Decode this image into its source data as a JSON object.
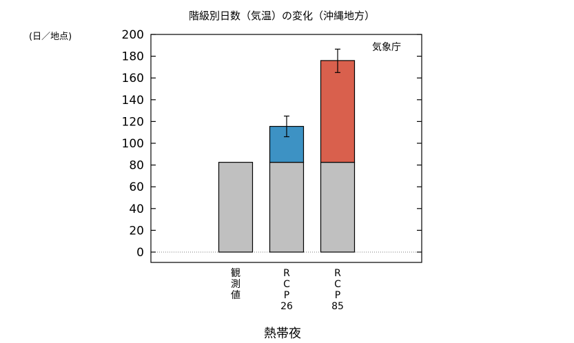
{
  "chart_data": {
    "type": "bar",
    "stacked": true,
    "title": "階級別日数（気温）の変化（沖縄地方）",
    "ylabel": "(日／地点)",
    "xlabel": "熱帯夜",
    "credit": "気象庁",
    "ylim": [
      0,
      200
    ],
    "yticks": [
      0,
      20,
      40,
      60,
      80,
      100,
      120,
      140,
      160,
      180,
      200
    ],
    "categories": [
      [
        "観",
        "測",
        "値"
      ],
      [
        "R",
        "C",
        "P",
        "26"
      ],
      [
        "R",
        "C",
        "P",
        "85"
      ]
    ],
    "series": [
      {
        "values": [
          82.5,
          82.5,
          82.5
        ],
        "color": "#c0c0c0"
      },
      {
        "values": [
          0,
          33,
          93.5
        ],
        "colors": [
          "#c0c0c0",
          "#3d92c4",
          "#d9604d"
        ]
      }
    ],
    "totals": [
      82.5,
      115.5,
      176
    ],
    "error_bars": [
      null,
      {
        "low": 106,
        "high": 125
      },
      {
        "low": 165,
        "high": 186.5
      }
    ],
    "zero_line": "dotted",
    "grid": false
  }
}
